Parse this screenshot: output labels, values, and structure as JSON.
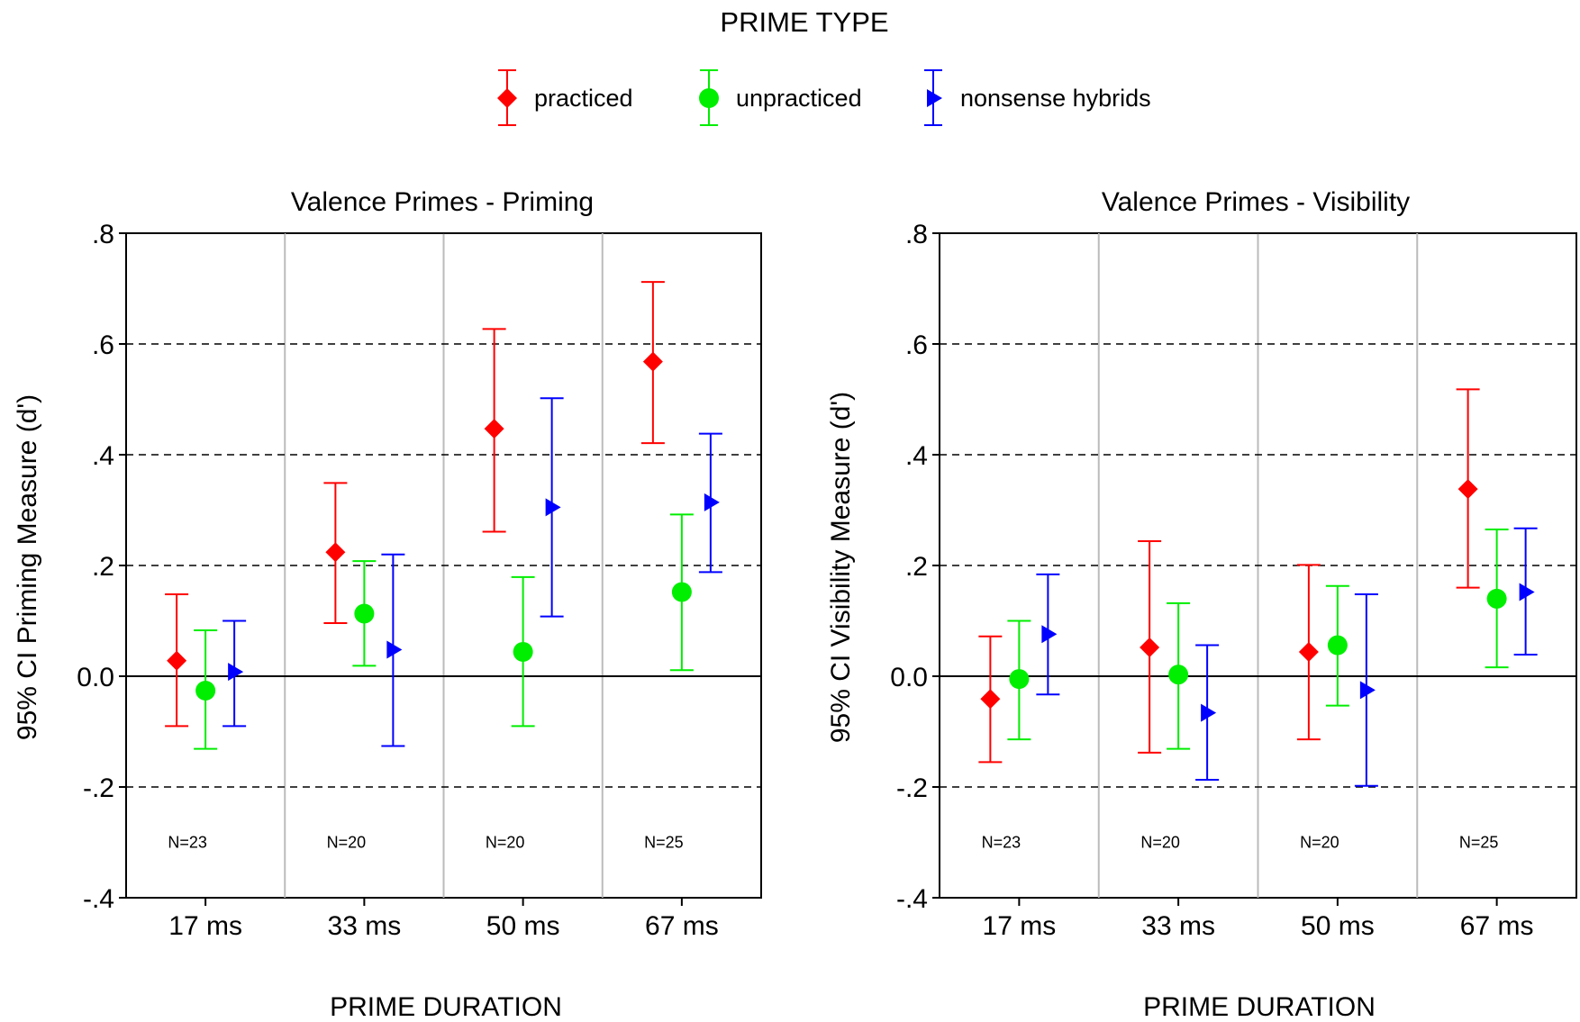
{
  "legend": {
    "title": "PRIME TYPE",
    "entries": [
      {
        "label": "practiced",
        "color": "#ff0000",
        "marker": "diamond"
      },
      {
        "label": "unpracticed",
        "color": "#00ee00",
        "marker": "circle"
      },
      {
        "label": "nonsense hybrids",
        "color": "#0000ff",
        "marker": "triangle-right"
      }
    ]
  },
  "chart_data": [
    {
      "type": "scatter",
      "error_bars": "95% CI",
      "title": "Valence Primes - Priming",
      "xlabel": "PRIME DURATION",
      "ylabel": "95% CI Priming Measure (d')",
      "categories": [
        "17 ms",
        "33 ms",
        "50 ms",
        "67 ms"
      ],
      "n_labels": [
        "N=23",
        "N=20",
        "N=20",
        "N=25"
      ],
      "ylim": [
        -0.4,
        0.8
      ],
      "yticks": [
        0.8,
        0.6,
        0.4,
        0.2,
        0.0,
        -0.2,
        -0.4
      ],
      "ytick_labels": [
        ".8",
        ".6",
        ".4",
        ".2",
        "0.0",
        "-.2",
        "-.4"
      ],
      "gridlines": "dashed at .8, .6, .4, .2, -.2; solid at 0.0",
      "series": [
        {
          "name": "practiced",
          "values": [
            0.028,
            0.224,
            0.447,
            0.568
          ],
          "lower": [
            -0.09,
            0.096,
            0.261,
            0.421
          ],
          "upper": [
            0.148,
            0.349,
            0.627,
            0.712
          ]
        },
        {
          "name": "unpracticed",
          "values": [
            -0.026,
            0.113,
            0.044,
            0.152
          ],
          "lower": [
            -0.131,
            0.019,
            -0.09,
            0.011
          ],
          "upper": [
            0.083,
            0.208,
            0.179,
            0.292
          ]
        },
        {
          "name": "nonsense hybrids",
          "values": [
            0.008,
            0.048,
            0.305,
            0.314
          ],
          "lower": [
            -0.09,
            -0.126,
            0.108,
            0.188
          ],
          "upper": [
            0.1,
            0.22,
            0.502,
            0.438
          ]
        }
      ]
    },
    {
      "type": "scatter",
      "error_bars": "95% CI",
      "title": "Valence Primes - Visibility",
      "xlabel": "PRIME DURATION",
      "ylabel": "95% CI Visibility Measure (d')",
      "categories": [
        "17 ms",
        "33 ms",
        "50 ms",
        "67 ms"
      ],
      "n_labels": [
        "N=23",
        "N=20",
        "N=20",
        "N=25"
      ],
      "ylim": [
        -0.4,
        0.8
      ],
      "yticks": [
        0.8,
        0.6,
        0.4,
        0.2,
        0.0,
        -0.2,
        -0.4
      ],
      "ytick_labels": [
        ".8",
        ".6",
        ".4",
        ".2",
        "0.0",
        "-.2",
        "-.4"
      ],
      "gridlines": "dashed at .8, .6, .4, .2, -.2; solid at 0.0",
      "series": [
        {
          "name": "practiced",
          "values": [
            -0.041,
            0.052,
            0.044,
            0.338
          ],
          "lower": [
            -0.155,
            -0.138,
            -0.114,
            0.16
          ],
          "upper": [
            0.072,
            0.244,
            0.201,
            0.518
          ]
        },
        {
          "name": "unpracticed",
          "values": [
            -0.005,
            0.003,
            0.056,
            0.14
          ],
          "lower": [
            -0.114,
            -0.131,
            -0.053,
            0.016
          ],
          "upper": [
            0.1,
            0.132,
            0.163,
            0.265
          ]
        },
        {
          "name": "nonsense hybrids",
          "values": [
            0.076,
            -0.066,
            -0.025,
            0.152
          ],
          "lower": [
            -0.033,
            -0.187,
            -0.198,
            0.039
          ],
          "upper": [
            0.184,
            0.056,
            0.148,
            0.267
          ]
        }
      ]
    }
  ]
}
